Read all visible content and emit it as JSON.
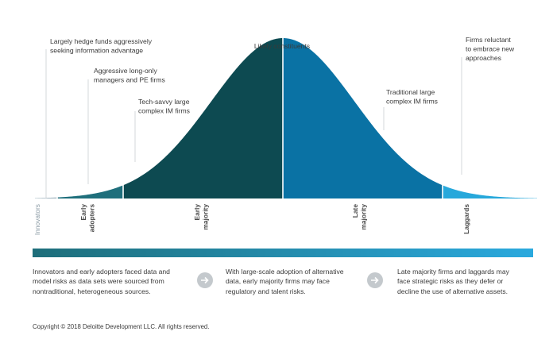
{
  "colors": {
    "innovators": "#9fb3be",
    "early_adopters": "#1f6f7c",
    "early_majority": "#0d4a51",
    "late_majority": "#0a72a4",
    "laggards": "#27a8db",
    "gradient_start": "#1e6e7a",
    "gradient_end": "#2aa9de",
    "circle": "#c4c9cd"
  },
  "chart_data": {
    "type": "area",
    "segments": [
      {
        "name": "Innovators",
        "share": 2.5
      },
      {
        "name": "Early adopters",
        "share": 13.5
      },
      {
        "name": "Early majority",
        "share": 34
      },
      {
        "name": "Late majority",
        "share": 34
      },
      {
        "name": "Laggards",
        "share": 16
      }
    ]
  },
  "curve": {
    "peak_label": "Likely constituents",
    "annotations": [
      [
        "Largely hedge funds aggressively",
        "seeking information advantage"
      ],
      [
        "Aggressive long-only",
        "managers and PE firms"
      ],
      [
        "Tech-savvy large",
        "complex IM firms"
      ],
      [
        "Traditional large",
        "complex IM firms"
      ],
      [
        "Firms reluctant",
        "to embrace new",
        "approaches"
      ]
    ],
    "segment_labels": [
      [
        "Innovators"
      ],
      [
        "Early",
        "adopters"
      ],
      [
        "Early",
        "majority"
      ],
      [
        "Late",
        "majority"
      ],
      [
        "Laggards"
      ]
    ]
  },
  "risks": [
    {
      "lines": [
        "Innovators and early adopters faced data and",
        "model risks as data sets were sourced from",
        "nontraditional, heterogeneous sources."
      ],
      "icon": "arrow-right-icon"
    },
    {
      "lines": [
        "With large-scale adoption of alternative",
        "data, early majority firms may face",
        "regulatory and talent risks."
      ],
      "icon": "arrow-right-icon"
    },
    {
      "lines": [
        "Late majority firms and laggards may",
        "face strategic risks as they defer or",
        "decline the use of alternative assets."
      ],
      "icon": ""
    }
  ],
  "copyright": "Copyright © 2018 Deloitte Development LLC. All rights reserved."
}
